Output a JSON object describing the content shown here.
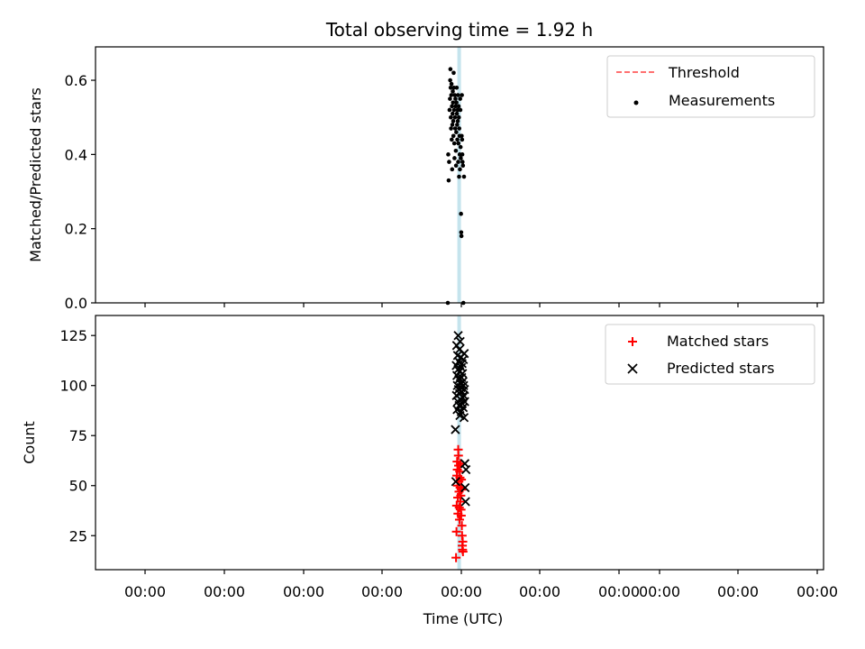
{
  "chart_data": [
    {
      "type": "scatter",
      "title": "Total observing time = 1.92 h",
      "ylabel": "Matched/Predicted stars",
      "xlabel": "",
      "ylim": [
        0,
        0.69
      ],
      "yticks": [
        0.0,
        0.2,
        0.4,
        0.6
      ],
      "ytick_labels": [
        "0.0",
        "0.2",
        "0.4",
        "0.6"
      ],
      "legend_position": "upper right",
      "colors": {
        "threshold": "#ff7070",
        "measurements": "#000000",
        "span": "#add8e6"
      },
      "threshold_label": "Threshold",
      "measurements_label": "Measurements",
      "series": [
        {
          "name": "Measurements",
          "x": [
            0.49,
            0.492,
            0.494,
            0.496,
            0.498,
            0.5,
            0.501,
            0.502,
            0.503,
            0.504,
            0.505,
            0.506,
            0.507,
            0.508,
            0.509,
            0.51,
            0.511,
            0.512,
            0.513,
            0.514,
            0.515,
            0.516,
            0.517,
            0.518,
            0.519,
            0.52,
            0.521,
            0.522,
            0.523,
            0.524,
            0.525,
            0.526,
            0.527,
            0.528,
            0.529,
            0.53,
            0.531,
            0.532,
            0.533,
            0.534,
            0.535,
            0.536,
            0.537,
            0.538,
            0.539,
            0.54,
            0.541,
            0.542,
            0.543,
            0.544,
            0.545,
            0.546,
            0.547,
            0.548,
            0.549,
            0.55,
            0.551,
            0.552,
            0.553,
            0.554,
            0.555,
            0.556,
            0.557,
            0.558,
            0.56,
            0.562,
            0.565
          ],
          "y": [
            0.0,
            0.4,
            0.33,
            0.38,
            0.52,
            0.55,
            0.6,
            0.63,
            0.58,
            0.5,
            0.47,
            0.56,
            0.59,
            0.44,
            0.53,
            0.36,
            0.48,
            0.51,
            0.57,
            0.54,
            0.49,
            0.45,
            0.62,
            0.58,
            0.52,
            0.43,
            0.39,
            0.56,
            0.5,
            0.47,
            0.55,
            0.53,
            0.41,
            0.37,
            0.46,
            0.54,
            0.58,
            0.51,
            0.48,
            0.44,
            0.52,
            0.49,
            0.56,
            0.38,
            0.43,
            0.53,
            0.5,
            0.34,
            0.47,
            0.45,
            0.4,
            0.36,
            0.55,
            0.52,
            0.42,
            0.39,
            0.24,
            0.19,
            0.18,
            0.45,
            0.56,
            0.44,
            0.4,
            0.38,
            0.37,
            0.0,
            0.34
          ]
        }
      ]
    },
    {
      "type": "scatter",
      "title": "",
      "xlabel": "Time (UTC)",
      "ylabel": "Count",
      "ylim": [
        8,
        135
      ],
      "yticks": [
        25,
        50,
        75,
        100,
        125
      ],
      "ytick_labels": [
        "25",
        "50",
        "75",
        "100",
        "125"
      ],
      "xtick_labels": [
        "00:00",
        "00:00",
        "00:00",
        "00:00",
        "00:00",
        "00:00",
        "00:00",
        "00:00",
        "00:00",
        "00:00"
      ],
      "xtick_positions": [
        0.07,
        0.19,
        0.31,
        0.43,
        0.55,
        0.67,
        0.79,
        0.85,
        0.97,
        1.09
      ],
      "legend_position": "upper right",
      "colors": {
        "matched": "#ff0000",
        "predicted": "#000000"
      },
      "series": [
        {
          "name": "Matched stars",
          "x": [
            0.528,
            0.53,
            0.531,
            0.532,
            0.533,
            0.534,
            0.535,
            0.536,
            0.537,
            0.538,
            0.539,
            0.54,
            0.541,
            0.542,
            0.543,
            0.544,
            0.545,
            0.546,
            0.547,
            0.548,
            0.549,
            0.55,
            0.551,
            0.552,
            0.553,
            0.554,
            0.555,
            0.556,
            0.557,
            0.558,
            0.559,
            0.56
          ],
          "y": [
            14,
            27,
            40,
            55,
            62,
            58,
            50,
            44,
            36,
            68,
            65,
            60,
            52,
            47,
            39,
            33,
            57,
            54,
            49,
            42,
            61,
            45,
            38,
            35,
            53,
            48,
            30,
            25,
            20,
            18,
            22,
            17
          ]
        },
        {
          "name": "Predicted stars",
          "x": [
            0.525,
            0.527,
            0.529,
            0.53,
            0.531,
            0.532,
            0.533,
            0.534,
            0.535,
            0.536,
            0.537,
            0.538,
            0.539,
            0.54,
            0.541,
            0.542,
            0.543,
            0.544,
            0.545,
            0.546,
            0.547,
            0.548,
            0.549,
            0.55,
            0.551,
            0.552,
            0.553,
            0.554,
            0.555,
            0.556,
            0.557,
            0.558,
            0.559,
            0.56,
            0.561,
            0.562,
            0.563,
            0.564,
            0.565,
            0.566,
            0.567,
            0.568,
            0.569,
            0.57,
            0.572,
            0.574
          ],
          "y": [
            78,
            52,
            110,
            95,
            120,
            105,
            88,
            100,
            115,
            92,
            108,
            125,
            98,
            112,
            103,
            90,
            118,
            96,
            107,
            85,
            122,
            101,
            93,
            114,
            99,
            87,
            109,
            104,
            97,
            111,
            91,
            106,
            94,
            102,
            89,
            113,
            100,
            95,
            84,
            116,
            98,
            92,
            61,
            49,
            42,
            58
          ]
        }
      ]
    }
  ]
}
